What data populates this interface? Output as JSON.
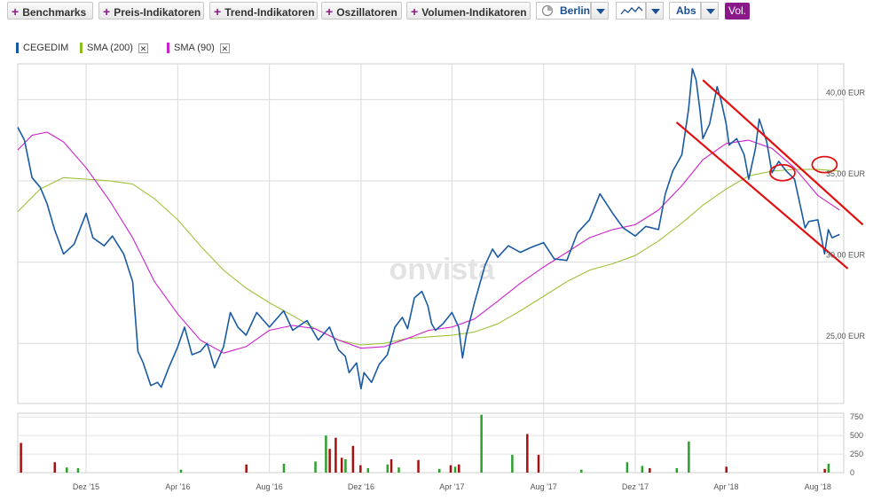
{
  "toolbar": {
    "benchmarks": "Benchmarks",
    "preis": "Preis-Indikatoren",
    "trend": "Trend-Indikatoren",
    "oszillatoren": "Oszillatoren",
    "volumen": "Volumen-Indikatoren",
    "exchange": "Berlin",
    "scale": "Abs",
    "vol": "Vol.",
    "plus": "+"
  },
  "legend": [
    {
      "label": "CEGEDIM",
      "color": "#1a5aa3",
      "removable": false
    },
    {
      "label": "SMA (200)",
      "color": "#8cbd1c",
      "removable": true
    },
    {
      "label": "SMA (90)",
      "color": "#cc22cc",
      "removable": true
    }
  ],
  "watermark": "onvista",
  "colors": {
    "price": "#1a5aa3",
    "sma200": "#9ec23a",
    "sma90": "#cc22cc",
    "annotation": "#e01010",
    "vol_up": "#2ca02c",
    "vol_down": "#a51010"
  },
  "chart_data": {
    "type": "line",
    "y_unit": "EUR",
    "ylim": [
      21.3,
      42.2
    ],
    "y_ticks": [
      {
        "v": 25,
        "label": "25,00 EUR"
      },
      {
        "v": 30,
        "label": "30,00 EUR"
      },
      {
        "v": 35,
        "label": "35,00 EUR"
      },
      {
        "v": 40,
        "label": "40,00 EUR"
      }
    ],
    "x_labels": [
      "Dez '15",
      "Apr '16",
      "Aug '16",
      "Dez '16",
      "Apr '17",
      "Aug '17",
      "Dez '17",
      "Apr '18",
      "Aug '18"
    ],
    "x_range": [
      "2015-09",
      "2018-09"
    ],
    "series": [
      {
        "name": "CEGEDIM",
        "values": [
          [
            "2015-09-01",
            38.3
          ],
          [
            "2015-09-10",
            37.5
          ],
          [
            "2015-09-20",
            35.2
          ],
          [
            "2015-10-01",
            34.6
          ],
          [
            "2015-10-10",
            33.6
          ],
          [
            "2015-10-20",
            32.0
          ],
          [
            "2015-11-01",
            30.5
          ],
          [
            "2015-11-15",
            31.1
          ],
          [
            "2015-12-01",
            33.0
          ],
          [
            "2015-12-10",
            31.5
          ],
          [
            "2015-12-25",
            31.0
          ],
          [
            "2016-01-05",
            31.6
          ],
          [
            "2016-01-20",
            30.5
          ],
          [
            "2016-02-01",
            28.8
          ],
          [
            "2016-02-08",
            24.5
          ],
          [
            "2016-02-15",
            23.8
          ],
          [
            "2016-02-25",
            22.4
          ],
          [
            "2016-03-05",
            22.6
          ],
          [
            "2016-03-10",
            22.3
          ],
          [
            "2016-03-20",
            23.5
          ],
          [
            "2016-04-01",
            24.8
          ],
          [
            "2016-04-10",
            26.0
          ],
          [
            "2016-04-20",
            24.3
          ],
          [
            "2016-05-01",
            24.5
          ],
          [
            "2016-05-10",
            25.0
          ],
          [
            "2016-05-20",
            23.5
          ],
          [
            "2016-06-01",
            24.8
          ],
          [
            "2016-06-10",
            26.9
          ],
          [
            "2016-06-20",
            26.0
          ],
          [
            "2016-07-01",
            25.5
          ],
          [
            "2016-07-15",
            26.9
          ],
          [
            "2016-08-01",
            26.0
          ],
          [
            "2016-08-20",
            27.0
          ],
          [
            "2016-09-01",
            25.8
          ],
          [
            "2016-09-20",
            26.4
          ],
          [
            "2016-10-05",
            25.2
          ],
          [
            "2016-10-20",
            26.0
          ],
          [
            "2016-11-01",
            24.6
          ],
          [
            "2016-11-10",
            24.2
          ],
          [
            "2016-11-15",
            23.2
          ],
          [
            "2016-11-25",
            23.8
          ],
          [
            "2016-12-01",
            22.2
          ],
          [
            "2016-12-05",
            23.2
          ],
          [
            "2016-12-15",
            22.6
          ],
          [
            "2016-12-25",
            23.7
          ],
          [
            "2017-01-05",
            24.3
          ],
          [
            "2017-01-15",
            26.0
          ],
          [
            "2017-01-25",
            26.6
          ],
          [
            "2017-02-01",
            25.9
          ],
          [
            "2017-02-10",
            27.8
          ],
          [
            "2017-02-20",
            28.2
          ],
          [
            "2017-02-28",
            27.3
          ],
          [
            "2017-03-05",
            26.2
          ],
          [
            "2017-03-10",
            25.8
          ],
          [
            "2017-03-20",
            26.2
          ],
          [
            "2017-04-01",
            26.9
          ],
          [
            "2017-04-10",
            26.0
          ],
          [
            "2017-04-15",
            24.1
          ],
          [
            "2017-04-20",
            25.5
          ],
          [
            "2017-05-01",
            27.5
          ],
          [
            "2017-05-15",
            29.8
          ],
          [
            "2017-05-25",
            30.8
          ],
          [
            "2017-06-01",
            30.3
          ],
          [
            "2017-06-15",
            31.0
          ],
          [
            "2017-07-01",
            30.6
          ],
          [
            "2017-07-15",
            30.9
          ],
          [
            "2017-08-01",
            31.2
          ],
          [
            "2017-08-15",
            30.2
          ],
          [
            "2017-09-01",
            30.1
          ],
          [
            "2017-09-15",
            31.8
          ],
          [
            "2017-10-01",
            32.6
          ],
          [
            "2017-10-15",
            34.2
          ],
          [
            "2017-11-01",
            33.0
          ],
          [
            "2017-11-15",
            32.1
          ],
          [
            "2017-12-01",
            31.6
          ],
          [
            "2017-12-15",
            32.2
          ],
          [
            "2018-01-01",
            32.0
          ],
          [
            "2018-01-10",
            34.2
          ],
          [
            "2018-01-20",
            35.6
          ],
          [
            "2018-02-01",
            36.6
          ],
          [
            "2018-02-10",
            39.4
          ],
          [
            "2018-02-15",
            41.9
          ],
          [
            "2018-02-20",
            41.2
          ],
          [
            "2018-02-25",
            39.4
          ],
          [
            "2018-03-01",
            37.6
          ],
          [
            "2018-03-10",
            38.5
          ],
          [
            "2018-03-20",
            40.8
          ],
          [
            "2018-03-25",
            40.0
          ],
          [
            "2018-04-01",
            38.5
          ],
          [
            "2018-04-05",
            37.2
          ],
          [
            "2018-04-15",
            37.6
          ],
          [
            "2018-04-25",
            36.6
          ],
          [
            "2018-05-01",
            35.1
          ],
          [
            "2018-05-10",
            37.0
          ],
          [
            "2018-05-15",
            38.8
          ],
          [
            "2018-05-25",
            37.4
          ],
          [
            "2018-06-01",
            35.5
          ],
          [
            "2018-06-10",
            36.2
          ],
          [
            "2018-06-20",
            35.6
          ],
          [
            "2018-07-01",
            35.1
          ],
          [
            "2018-07-10",
            33.2
          ],
          [
            "2018-07-15",
            32.1
          ],
          [
            "2018-07-20",
            32.5
          ],
          [
            "2018-08-01",
            32.6
          ],
          [
            "2018-08-10",
            30.5
          ],
          [
            "2018-08-15",
            32.0
          ],
          [
            "2018-08-20",
            31.5
          ],
          [
            "2018-08-30",
            31.7
          ]
        ]
      },
      {
        "name": "SMA (200)",
        "values": [
          [
            "2015-09-01",
            33.1
          ],
          [
            "2015-10-01",
            34.5
          ],
          [
            "2015-11-01",
            35.2
          ],
          [
            "2015-12-01",
            35.1
          ],
          [
            "2016-01-01",
            35.0
          ],
          [
            "2016-02-01",
            34.8
          ],
          [
            "2016-03-01",
            33.9
          ],
          [
            "2016-04-01",
            32.6
          ],
          [
            "2016-05-01",
            31.0
          ],
          [
            "2016-06-01",
            29.5
          ],
          [
            "2016-07-01",
            28.4
          ],
          [
            "2016-08-01",
            27.5
          ],
          [
            "2016-09-01",
            26.7
          ],
          [
            "2016-10-01",
            25.9
          ],
          [
            "2016-11-01",
            25.2
          ],
          [
            "2016-12-01",
            24.9
          ],
          [
            "2017-01-01",
            25.0
          ],
          [
            "2017-02-01",
            25.3
          ],
          [
            "2017-03-01",
            25.4
          ],
          [
            "2017-04-01",
            25.5
          ],
          [
            "2017-05-01",
            25.7
          ],
          [
            "2017-06-01",
            26.2
          ],
          [
            "2017-07-01",
            27.0
          ],
          [
            "2017-08-01",
            27.9
          ],
          [
            "2017-09-01",
            28.8
          ],
          [
            "2017-10-01",
            29.5
          ],
          [
            "2017-11-01",
            29.9
          ],
          [
            "2017-12-01",
            30.4
          ],
          [
            "2018-01-01",
            31.3
          ],
          [
            "2018-02-01",
            32.4
          ],
          [
            "2018-03-01",
            33.5
          ],
          [
            "2018-04-01",
            34.5
          ],
          [
            "2018-05-01",
            35.3
          ],
          [
            "2018-06-01",
            35.6
          ],
          [
            "2018-07-01",
            35.7
          ],
          [
            "2018-08-01",
            35.7
          ],
          [
            "2018-08-30",
            35.6
          ]
        ]
      },
      {
        "name": "SMA (90)",
        "values": [
          [
            "2015-09-01",
            36.9
          ],
          [
            "2015-09-20",
            37.8
          ],
          [
            "2015-10-10",
            38.0
          ],
          [
            "2015-11-01",
            37.4
          ],
          [
            "2015-12-01",
            35.8
          ],
          [
            "2016-01-01",
            33.8
          ],
          [
            "2016-02-01",
            31.5
          ],
          [
            "2016-03-01",
            28.8
          ],
          [
            "2016-04-01",
            26.8
          ],
          [
            "2016-05-01",
            25.2
          ],
          [
            "2016-06-01",
            24.4
          ],
          [
            "2016-07-01",
            24.8
          ],
          [
            "2016-08-01",
            25.8
          ],
          [
            "2016-09-01",
            26.1
          ],
          [
            "2016-10-01",
            25.9
          ],
          [
            "2016-11-01",
            25.2
          ],
          [
            "2016-12-01",
            24.7
          ],
          [
            "2017-01-01",
            24.8
          ],
          [
            "2017-02-01",
            25.3
          ],
          [
            "2017-03-01",
            25.8
          ],
          [
            "2017-04-01",
            26.0
          ],
          [
            "2017-05-01",
            26.5
          ],
          [
            "2017-06-01",
            27.6
          ],
          [
            "2017-07-01",
            28.7
          ],
          [
            "2017-08-01",
            29.7
          ],
          [
            "2017-09-01",
            30.6
          ],
          [
            "2017-10-01",
            31.5
          ],
          [
            "2017-11-01",
            32.0
          ],
          [
            "2017-12-01",
            32.3
          ],
          [
            "2018-01-01",
            33.2
          ],
          [
            "2018-02-01",
            34.7
          ],
          [
            "2018-03-01",
            36.3
          ],
          [
            "2018-04-01",
            37.3
          ],
          [
            "2018-05-01",
            37.5
          ],
          [
            "2018-06-01",
            37.0
          ],
          [
            "2018-07-01",
            35.8
          ],
          [
            "2018-08-01",
            34.1
          ],
          [
            "2018-08-30",
            33.2
          ]
        ]
      }
    ],
    "annotations": {
      "channel_lines": [
        [
          [
            "2018-03-01",
            41.2
          ],
          [
            "2018-09-30",
            32.3
          ]
        ],
        [
          [
            "2018-01-25",
            38.6
          ],
          [
            "2018-09-10",
            29.6
          ]
        ]
      ],
      "circles": [
        [
          "2018-06-15",
          35.5
        ],
        [
          "2018-08-10",
          36.0
        ]
      ]
    },
    "volume": {
      "ylim": [
        0,
        800
      ],
      "y_ticks": [
        {
          "v": 0,
          "label": "0"
        },
        {
          "v": 250,
          "label": "250"
        },
        {
          "v": 500,
          "label": "500"
        },
        {
          "v": 750,
          "label": "750"
        }
      ],
      "bars": [
        [
          "2015-09-05",
          400,
          "down"
        ],
        [
          "2015-10-20",
          140,
          "down"
        ],
        [
          "2015-11-05",
          70,
          "up"
        ],
        [
          "2015-11-20",
          60,
          "up"
        ],
        [
          "2016-04-05",
          40,
          "up"
        ],
        [
          "2016-07-01",
          110,
          "down"
        ],
        [
          "2016-08-20",
          120,
          "up"
        ],
        [
          "2016-10-01",
          150,
          "up"
        ],
        [
          "2016-10-15",
          500,
          "up"
        ],
        [
          "2016-10-20",
          320,
          "down"
        ],
        [
          "2016-10-28",
          470,
          "down"
        ],
        [
          "2016-11-05",
          200,
          "down"
        ],
        [
          "2016-11-10",
          180,
          "up"
        ],
        [
          "2016-11-20",
          360,
          "down"
        ],
        [
          "2016-11-30",
          100,
          "down"
        ],
        [
          "2016-12-10",
          60,
          "up"
        ],
        [
          "2017-01-05",
          110,
          "up"
        ],
        [
          "2017-01-10",
          180,
          "down"
        ],
        [
          "2017-01-20",
          70,
          "up"
        ],
        [
          "2017-02-15",
          170,
          "down"
        ],
        [
          "2017-03-15",
          50,
          "up"
        ],
        [
          "2017-03-30",
          100,
          "down"
        ],
        [
          "2017-04-05",
          80,
          "up"
        ],
        [
          "2017-04-10",
          110,
          "down"
        ],
        [
          "2017-05-10",
          780,
          "up"
        ],
        [
          "2017-06-20",
          240,
          "up"
        ],
        [
          "2017-07-10",
          520,
          "down"
        ],
        [
          "2017-07-25",
          240,
          "down"
        ],
        [
          "2017-09-20",
          40,
          "up"
        ],
        [
          "2017-11-20",
          140,
          "up"
        ],
        [
          "2017-12-10",
          90,
          "up"
        ],
        [
          "2017-12-20",
          60,
          "down"
        ],
        [
          "2018-01-25",
          60,
          "up"
        ],
        [
          "2018-02-10",
          420,
          "up"
        ],
        [
          "2018-04-01",
          80,
          "down"
        ],
        [
          "2018-08-10",
          50,
          "down"
        ],
        [
          "2018-08-15",
          120,
          "up"
        ]
      ]
    }
  }
}
